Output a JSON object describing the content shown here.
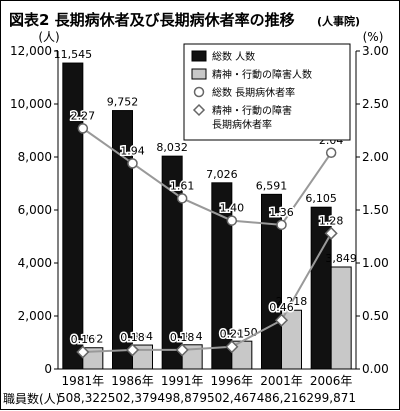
{
  "title_main": "図表2  長期病休者及び長期病休者率の推移",
  "title_sub": "(人事院)",
  "left_unit": "(人)",
  "right_unit": "(%)",
  "staff_label": "職員数(人)",
  "colors": {
    "black_bar": "#111111",
    "gray_bar": "#c8c8c8",
    "line": "#999999",
    "axis": "#000000"
  },
  "chart_data": {
    "type": "bar",
    "categories": [
      "1981年",
      "1986年",
      "1991年",
      "1996年",
      "2001年",
      "2006年"
    ],
    "staff_counts": [
      "508,322",
      "502,379",
      "498,879",
      "502,467",
      "486,216",
      "299,871"
    ],
    "y_left": {
      "ticks": [
        "0",
        "2,000",
        "4,000",
        "6,000",
        "8,000",
        "10,000",
        "12,000"
      ],
      "range": [
        0,
        12000
      ]
    },
    "y_right": {
      "ticks": [
        "0.00",
        "0.50",
        "1.00",
        "1.50",
        "2.00",
        "2.50",
        "3.00"
      ],
      "range": [
        0,
        3
      ]
    },
    "series": [
      {
        "name": "総数  人数",
        "kind": "bar",
        "color": "#111111",
        "values": [
          11545,
          9752,
          8032,
          7026,
          6591,
          6105
        ],
        "labels": [
          "11,545",
          "9,752",
          "8,032",
          "7,026",
          "6,591",
          "6,105"
        ]
      },
      {
        "name": "精神・行動の障害人数",
        "kind": "bar",
        "color": "#c8c8c8",
        "values": [
          802,
          904,
          914,
          1050,
          2218,
          3849
        ],
        "labels": [
          "802",
          "904",
          "914",
          "1,050",
          "2,218",
          "3,849"
        ]
      },
      {
        "name": "総数  長期病休者率",
        "kind": "line",
        "marker": "circle",
        "values": [
          2.27,
          1.94,
          1.61,
          1.4,
          1.36,
          2.04
        ],
        "labels": [
          "2.27",
          "1.94",
          "1.61",
          "1.40",
          "1.36",
          "2.04"
        ]
      },
      {
        "name": "精神・行動の障害 長期病休者率",
        "kind": "line",
        "marker": "diamond",
        "values": [
          0.16,
          0.18,
          0.18,
          0.21,
          0.46,
          1.28
        ],
        "labels": [
          "0.16",
          "0.18",
          "0.18",
          "0.21",
          "0.46",
          "1.28"
        ]
      }
    ],
    "legend": {
      "position": "top-right",
      "items": [
        "総数  人数",
        "精神・行動の障害人数",
        "総数  長期病休者率",
        "精神・行動の障害",
        "長期病休者率"
      ]
    },
    "grid": false
  }
}
